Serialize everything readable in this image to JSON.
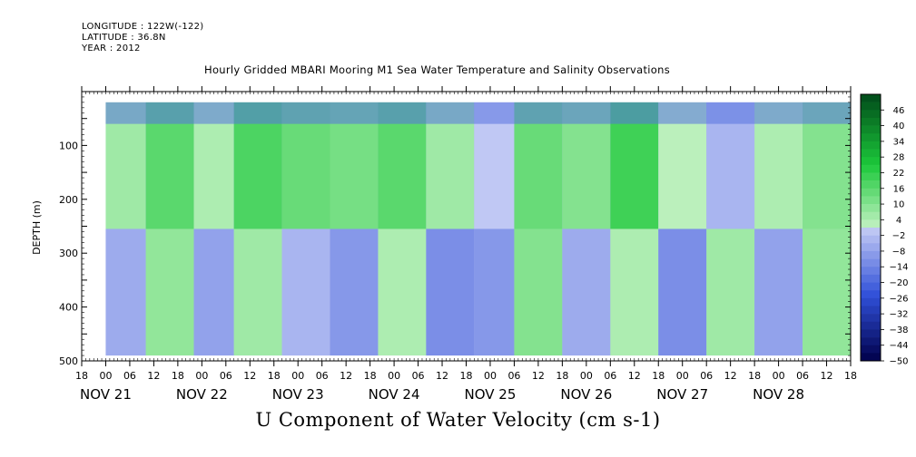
{
  "header": {
    "longitude": "LONGITUDE : 122W(-122)",
    "latitude": "LATITUDE : 36.8N",
    "year": "YEAR : 2012",
    "title": "Hourly Gridded MBARI Mooring M1 Sea Water Temperature and Salinity Observations"
  },
  "footer": {
    "variable_title": "U Component of Water Velocity (cm s-1)"
  },
  "colors": {
    "neg_dark": "#00004a",
    "neg_mid": "#3050d8",
    "neg_light": "#c0c8f4",
    "pos_light": "#c2f2c2",
    "pos_mid": "#1cc83a",
    "pos_dark": "#004a1a"
  },
  "chart_data": {
    "type": "heatmap",
    "title": "Hourly Gridded MBARI Mooring M1 Sea Water Temperature and Salinity Observations",
    "xlabel": "",
    "ylabel": "DEPTH (m)",
    "y_axis": {
      "range": [
        500,
        0
      ],
      "inverted": true,
      "ticks": [
        100,
        200,
        300,
        400,
        500
      ]
    },
    "x_axis": {
      "start": "2012-11-20 18:00",
      "end": "2012-11-28 18:00",
      "hour_tick_labels": [
        "18",
        "00",
        "06",
        "12",
        "18",
        "00",
        "06",
        "12",
        "18",
        "00",
        "06",
        "12",
        "18",
        "00",
        "06",
        "12",
        "18",
        "00",
        "06",
        "12",
        "18",
        "00",
        "06",
        "12",
        "18",
        "00",
        "06",
        "12",
        "18",
        "00",
        "06",
        "12",
        "18"
      ],
      "day_labels": [
        "NOV 21",
        "NOV 22",
        "NOV 23",
        "NOV 24",
        "NOV 25",
        "NOV 26",
        "NOV 27",
        "NOV 28"
      ]
    },
    "data_extent": {
      "x": [
        "2012-11-21 00:00",
        "2012-11-28 18:00"
      ],
      "y": [
        20,
        490
      ]
    },
    "colorbar": {
      "labels": [
        "46",
        "40",
        "34",
        "28",
        "22",
        "16",
        "10",
        "4",
        "-2",
        "-8",
        "-14",
        "-20",
        "-26",
        "-32",
        "-38",
        "-44",
        "-50"
      ],
      "min": -50,
      "max": 52,
      "step": 3
    },
    "bands": [
      {
        "start": "2012-11-21 00:00",
        "end": "2012-11-21 10:00",
        "upper": 6,
        "deep": -6
      },
      {
        "start": "2012-11-21 10:00",
        "end": "2012-11-21 22:00",
        "upper": 16,
        "deep": 8
      },
      {
        "start": "2012-11-21 22:00",
        "end": "2012-11-22 08:00",
        "upper": 4,
        "deep": -8
      },
      {
        "start": "2012-11-22 08:00",
        "end": "2012-11-22 20:00",
        "upper": 18,
        "deep": 6
      },
      {
        "start": "2012-11-22 20:00",
        "end": "2012-11-23 08:00",
        "upper": 14,
        "deep": -4
      },
      {
        "start": "2012-11-23 08:00",
        "end": "2012-11-23 20:00",
        "upper": 12,
        "deep": -10
      },
      {
        "start": "2012-11-23 20:00",
        "end": "2012-11-24 08:00",
        "upper": 16,
        "deep": 4
      },
      {
        "start": "2012-11-24 08:00",
        "end": "2012-11-24 20:00",
        "upper": 6,
        "deep": -12
      },
      {
        "start": "2012-11-24 20:00",
        "end": "2012-11-25 06:00",
        "upper": 0,
        "deep": -10
      },
      {
        "start": "2012-11-25 06:00",
        "end": "2012-11-25 18:00",
        "upper": 14,
        "deep": 10
      },
      {
        "start": "2012-11-25 18:00",
        "end": "2012-11-26 06:00",
        "upper": 10,
        "deep": -6
      },
      {
        "start": "2012-11-26 06:00",
        "end": "2012-11-26 18:00",
        "upper": 20,
        "deep": 4
      },
      {
        "start": "2012-11-26 18:00",
        "end": "2012-11-27 06:00",
        "upper": 2,
        "deep": -12
      },
      {
        "start": "2012-11-27 06:00",
        "end": "2012-11-27 18:00",
        "upper": -4,
        "deep": 6
      },
      {
        "start": "2012-11-27 18:00",
        "end": "2012-11-28 06:00",
        "upper": 4,
        "deep": -8
      },
      {
        "start": "2012-11-28 06:00",
        "end": "2012-11-28 18:00",
        "upper": 10,
        "deep": 8
      }
    ],
    "surface_layer": {
      "depth": [
        20,
        60
      ],
      "value": -18
    }
  }
}
